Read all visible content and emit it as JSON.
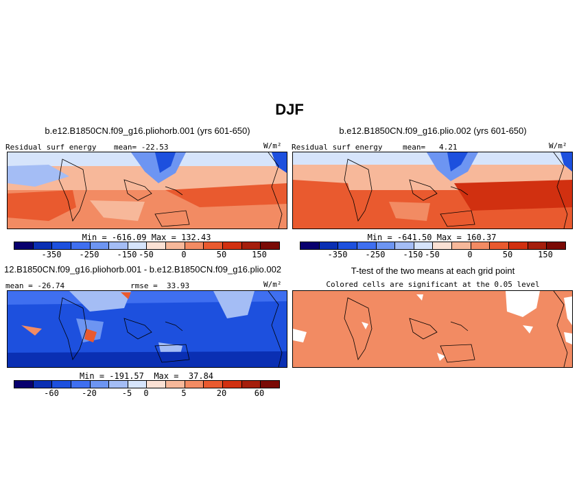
{
  "figure_title": "DJF",
  "colors": {
    "scale": [
      "#08006e",
      "#0a2fb3",
      "#1d50de",
      "#3f6ff0",
      "#6d95f2",
      "#a4bdf5",
      "#d6e4fb",
      "#fbe1d4",
      "#f7b89a",
      "#f28b63",
      "#e95a2f",
      "#d13010",
      "#a51e0c",
      "#7a0a05"
    ],
    "land_outline": "#000000"
  },
  "panels": {
    "p1": {
      "title": "b.e12.B1850CN.f09_g16.pliohorb.001 (yrs 601-650)",
      "label_left": "Residual surf energy",
      "label_mid": "mean= -22.53",
      "units": "W/m²",
      "minmax": "Min = -616.09  Max = 132.43"
    },
    "p2": {
      "title": "b.e12.B1850CN.f09_g16.plio.002 (yrs 601-650)",
      "label_left": "Residual surf energy",
      "label_mid": "mean=   4.21",
      "units": "W/m²",
      "minmax": "Min = -641.50  Max = 160.37"
    },
    "p3": {
      "title": "12.B1850CN.f09_g16.pliohorb.001 - b.e12.B1850CN.f09_g16.plio.002",
      "label_left": "mean = -26.74",
      "label_mid": "rmse =  33.93",
      "units": "W/m²",
      "minmax": "Min = -191.57  Max =  37.84"
    },
    "p4": {
      "title": "T-test of the two means at each grid point",
      "subtitle": "Colored cells are significant at the 0.05 level"
    }
  },
  "colorbar_abs": {
    "ticks": [
      "-350",
      "-250",
      "-150",
      "-50",
      "0",
      "50",
      "150"
    ]
  },
  "colorbar_diff": {
    "ticks": [
      "-60",
      "-20",
      "-5",
      "0",
      "5",
      "20",
      "60"
    ]
  }
}
